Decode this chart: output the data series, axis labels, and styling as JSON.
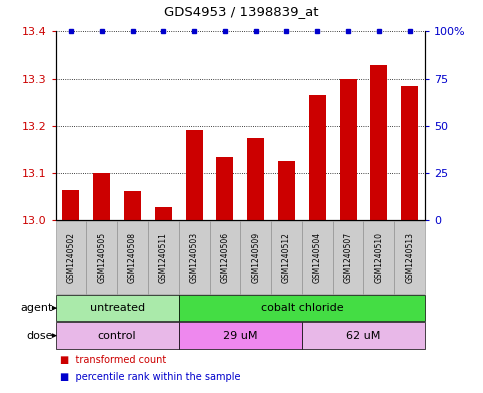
{
  "title": "GDS4953 / 1398839_at",
  "samples": [
    "GSM1240502",
    "GSM1240505",
    "GSM1240508",
    "GSM1240511",
    "GSM1240503",
    "GSM1240506",
    "GSM1240509",
    "GSM1240512",
    "GSM1240504",
    "GSM1240507",
    "GSM1240510",
    "GSM1240513"
  ],
  "bar_values": [
    13.065,
    13.1,
    13.062,
    13.028,
    13.192,
    13.135,
    13.175,
    13.125,
    13.265,
    13.3,
    13.33,
    13.285
  ],
  "percentile_values": [
    100,
    100,
    100,
    100,
    100,
    100,
    100,
    100,
    100,
    100,
    100,
    100
  ],
  "bar_color": "#cc0000",
  "percentile_color": "#0000cc",
  "ylim_left": [
    13.0,
    13.4
  ],
  "ylim_right": [
    0,
    100
  ],
  "yticks_left": [
    13.0,
    13.1,
    13.2,
    13.3,
    13.4
  ],
  "yticks_right": [
    0,
    25,
    50,
    75,
    100
  ],
  "ytick_labels_right": [
    "0",
    "25",
    "50",
    "75",
    "100%"
  ],
  "agent_groups": [
    {
      "label": "untreated",
      "start": 0,
      "end": 4,
      "color": "#aaeaaa"
    },
    {
      "label": "cobalt chloride",
      "start": 4,
      "end": 12,
      "color": "#44dd44"
    }
  ],
  "dose_groups": [
    {
      "label": "control",
      "start": 0,
      "end": 4,
      "color": "#e8b8e8"
    },
    {
      "label": "29 uM",
      "start": 4,
      "end": 8,
      "color": "#ee88ee"
    },
    {
      "label": "62 uM",
      "start": 8,
      "end": 12,
      "color": "#e8b8e8"
    }
  ],
  "legend_items": [
    {
      "color": "#cc0000",
      "label": "transformed count"
    },
    {
      "color": "#0000cc",
      "label": "percentile rank within the sample"
    }
  ],
  "xlabel_agent": "agent",
  "xlabel_dose": "dose",
  "sample_bg_color": "#cccccc",
  "tick_label_color_left": "#cc0000",
  "tick_label_color_right": "#0000cc"
}
